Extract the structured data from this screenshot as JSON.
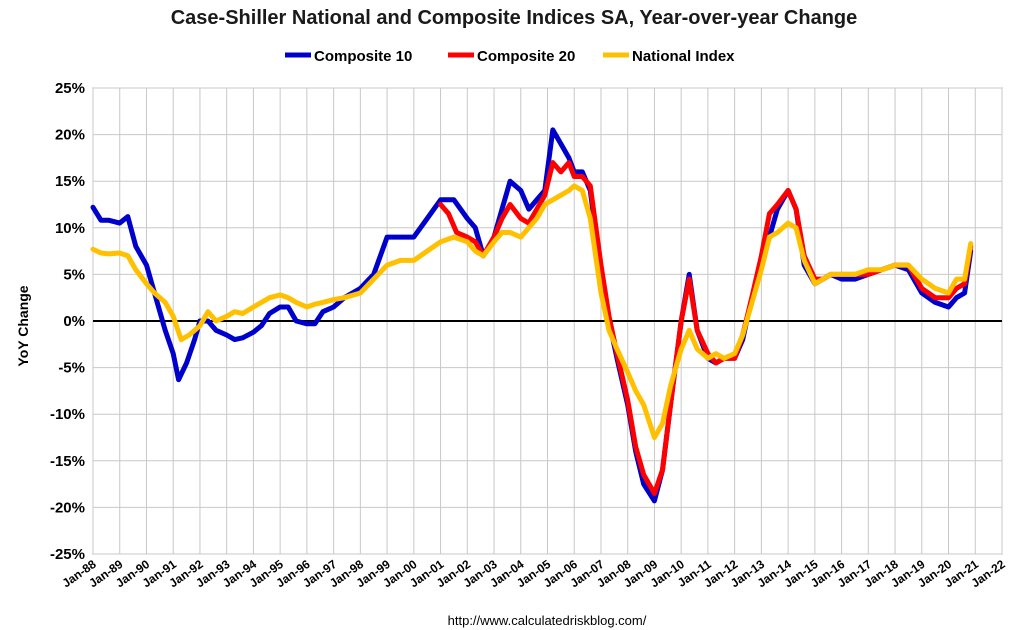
{
  "chart_data": {
    "type": "line",
    "title": "Case-Shiller National and Composite Indices SA, Year-over-year Change",
    "ylabel": "YoY Change",
    "xlabel": "",
    "source": "http://www.calculatedriskblog.com/",
    "ylim": [
      -25,
      25
    ],
    "xlim": [
      1988,
      2022
    ],
    "ytick_labels": [
      "25%",
      "20%",
      "15%",
      "10%",
      "5%",
      "0%",
      "-5%",
      "-10%",
      "-15%",
      "-20%",
      "-25%"
    ],
    "ytick_values": [
      25,
      20,
      15,
      10,
      5,
      0,
      -5,
      -10,
      -15,
      -20,
      -25
    ],
    "xtick_labels": [
      "Jan-88",
      "Jan-89",
      "Jan-90",
      "Jan-91",
      "Jan-92",
      "Jan-93",
      "Jan-94",
      "Jan-95",
      "Jan-96",
      "Jan-97",
      "Jan-98",
      "Jan-99",
      "Jan-00",
      "Jan-01",
      "Jan-02",
      "Jan-03",
      "Jan-04",
      "Jan-05",
      "Jan-06",
      "Jan-07",
      "Jan-08",
      "Jan-09",
      "Jan-10",
      "Jan-11",
      "Jan-12",
      "Jan-13",
      "Jan-14",
      "Jan-15",
      "Jan-16",
      "Jan-17",
      "Jan-18",
      "Jan-19",
      "Jan-20",
      "Jan-21",
      "Jan-22"
    ],
    "xtick_values": [
      1988,
      1989,
      1990,
      1991,
      1992,
      1993,
      1994,
      1995,
      1996,
      1997,
      1998,
      1999,
      2000,
      2001,
      2002,
      2003,
      2004,
      2005,
      2006,
      2007,
      2008,
      2009,
      2010,
      2011,
      2012,
      2013,
      2014,
      2015,
      2016,
      2017,
      2018,
      2019,
      2020,
      2021,
      2022
    ],
    "grid": true,
    "legend_position": "top",
    "series": [
      {
        "name": "Composite 10",
        "color": "#0000cc",
        "x": [
          1988.0,
          1988.3,
          1988.6,
          1989.0,
          1989.3,
          1989.6,
          1990.0,
          1990.3,
          1990.7,
          1991.0,
          1991.2,
          1991.5,
          1991.8,
          1992.0,
          1992.3,
          1992.6,
          1993.0,
          1993.3,
          1993.6,
          1994.0,
          1994.3,
          1994.6,
          1995.0,
          1995.3,
          1995.6,
          1996.0,
          1996.3,
          1996.6,
          1997.0,
          1997.4,
          1998.0,
          1998.5,
          1999.0,
          1999.5,
          2000.0,
          2000.5,
          2001.0,
          2001.5,
          2002.0,
          2002.3,
          2002.6,
          2003.0,
          2003.3,
          2003.6,
          2004.0,
          2004.3,
          2004.6,
          2004.9,
          2005.2,
          2005.5,
          2005.8,
          2006.0,
          2006.3,
          2006.6,
          2007.0,
          2007.3,
          2007.6,
          2008.0,
          2008.3,
          2008.6,
          2009.0,
          2009.3,
          2009.6,
          2010.0,
          2010.3,
          2010.6,
          2011.0,
          2011.3,
          2011.6,
          2012.0,
          2012.3,
          2012.6,
          2013.0,
          2013.3,
          2013.6,
          2014.0,
          2014.3,
          2014.6,
          2015.0,
          2015.3,
          2015.6,
          2016.0,
          2016.5,
          2017.0,
          2017.5,
          2018.0,
          2018.5,
          2019.0,
          2019.5,
          2020.0,
          2020.3,
          2020.6,
          2020.83
        ],
        "values": [
          12.2,
          10.8,
          10.8,
          10.5,
          11.2,
          8.0,
          6.0,
          3.0,
          -1.0,
          -3.5,
          -6.3,
          -4.5,
          -2.0,
          0.0,
          0.0,
          -1.0,
          -1.5,
          -2.0,
          -1.8,
          -1.2,
          -0.5,
          0.8,
          1.5,
          1.5,
          0.0,
          -0.3,
          -0.3,
          1.0,
          1.5,
          2.5,
          3.5,
          5.0,
          9.0,
          9.0,
          9.0,
          11.0,
          13.0,
          13.0,
          11.0,
          10.0,
          7.0,
          9.0,
          12.0,
          15.0,
          14.0,
          12.0,
          13.0,
          14.0,
          20.5,
          19.0,
          17.5,
          16.0,
          16.0,
          14.0,
          5.0,
          0.0,
          -4.0,
          -9.0,
          -14.0,
          -17.5,
          -19.3,
          -16.0,
          -9.0,
          0.0,
          5.0,
          -1.0,
          -4.0,
          -4.5,
          -4.0,
          -4.0,
          -2.0,
          2.0,
          6.0,
          9.0,
          12.0,
          14.0,
          12.0,
          6.0,
          4.0,
          4.5,
          5.0,
          4.5,
          4.5,
          5.0,
          5.5,
          6.0,
          5.5,
          3.0,
          2.0,
          1.5,
          2.5,
          3.0,
          7.5
        ]
      },
      {
        "name": "Composite 20",
        "color": "#ff0000",
        "x": [
          2001.0,
          2001.3,
          2001.6,
          2002.0,
          2002.3,
          2002.6,
          2003.0,
          2003.3,
          2003.6,
          2004.0,
          2004.3,
          2004.6,
          2004.9,
          2005.2,
          2005.5,
          2005.8,
          2006.0,
          2006.3,
          2006.6,
          2007.0,
          2007.3,
          2007.6,
          2008.0,
          2008.3,
          2008.6,
          2009.0,
          2009.3,
          2009.6,
          2010.0,
          2010.3,
          2010.6,
          2011.0,
          2011.3,
          2011.6,
          2012.0,
          2012.3,
          2012.6,
          2013.0,
          2013.3,
          2013.6,
          2014.0,
          2014.3,
          2014.6,
          2015.0,
          2015.3,
          2015.6,
          2016.0,
          2016.5,
          2017.0,
          2017.5,
          2018.0,
          2018.5,
          2019.0,
          2019.5,
          2020.0,
          2020.3,
          2020.6,
          2020.83
        ],
        "values": [
          12.5,
          11.5,
          9.5,
          9.0,
          8.5,
          7.0,
          9.0,
          11.0,
          12.5,
          11.0,
          10.5,
          12.0,
          13.5,
          17.0,
          16.0,
          17.0,
          15.5,
          15.5,
          14.5,
          6.0,
          0.5,
          -3.5,
          -8.5,
          -13.5,
          -16.5,
          -18.5,
          -16.0,
          -9.0,
          0.0,
          4.5,
          -1.0,
          -3.5,
          -4.5,
          -4.0,
          -4.0,
          -1.5,
          2.0,
          7.0,
          11.5,
          12.5,
          14.0,
          12.0,
          7.0,
          4.5,
          4.5,
          5.0,
          5.0,
          5.0,
          5.0,
          5.5,
          6.0,
          6.0,
          3.5,
          2.5,
          2.5,
          3.5,
          4.0,
          8.0
        ]
      },
      {
        "name": "National Index",
        "color": "#ffc000",
        "x": [
          1988.0,
          1988.3,
          1988.6,
          1989.0,
          1989.3,
          1989.6,
          1990.0,
          1990.3,
          1990.7,
          1991.0,
          1991.3,
          1991.6,
          1992.0,
          1992.3,
          1992.6,
          1993.0,
          1993.3,
          1993.6,
          1994.0,
          1994.3,
          1994.6,
          1995.0,
          1995.3,
          1995.6,
          1996.0,
          1996.3,
          1996.6,
          1997.0,
          1997.4,
          1998.0,
          1998.5,
          1999.0,
          1999.5,
          2000.0,
          2000.5,
          2001.0,
          2001.5,
          2002.0,
          2002.3,
          2002.6,
          2003.0,
          2003.3,
          2003.6,
          2004.0,
          2004.3,
          2004.6,
          2004.9,
          2005.2,
          2005.5,
          2005.8,
          2006.0,
          2006.3,
          2006.6,
          2007.0,
          2007.3,
          2007.6,
          2008.0,
          2008.3,
          2008.6,
          2009.0,
          2009.3,
          2009.6,
          2010.0,
          2010.3,
          2010.6,
          2011.0,
          2011.3,
          2011.6,
          2012.0,
          2012.3,
          2012.6,
          2013.0,
          2013.3,
          2013.6,
          2014.0,
          2014.3,
          2014.6,
          2015.0,
          2015.3,
          2015.6,
          2016.0,
          2016.5,
          2017.0,
          2017.5,
          2018.0,
          2018.5,
          2019.0,
          2019.5,
          2020.0,
          2020.3,
          2020.6,
          2020.83
        ],
        "values": [
          7.7,
          7.3,
          7.2,
          7.3,
          7.0,
          5.5,
          4.0,
          3.0,
          2.0,
          0.5,
          -2.0,
          -1.5,
          -0.5,
          1.0,
          0.0,
          0.5,
          1.0,
          0.8,
          1.5,
          2.0,
          2.5,
          2.8,
          2.5,
          2.0,
          1.5,
          1.8,
          2.0,
          2.3,
          2.5,
          3.0,
          4.5,
          6.0,
          6.5,
          6.5,
          7.5,
          8.5,
          9.0,
          8.5,
          7.5,
          7.0,
          8.5,
          9.5,
          9.5,
          9.0,
          10.0,
          11.0,
          12.5,
          13.0,
          13.5,
          14.0,
          14.5,
          14.0,
          11.0,
          3.0,
          -1.0,
          -3.0,
          -5.5,
          -7.5,
          -9.0,
          -12.5,
          -11.0,
          -7.0,
          -3.0,
          -1.0,
          -3.0,
          -4.0,
          -3.5,
          -4.0,
          -3.5,
          -1.5,
          1.5,
          5.5,
          9.0,
          9.5,
          10.5,
          10.0,
          6.5,
          4.0,
          4.5,
          5.0,
          5.0,
          5.0,
          5.5,
          5.5,
          6.0,
          6.0,
          4.5,
          3.5,
          3.0,
          4.5,
          4.5,
          8.3
        ]
      }
    ]
  }
}
